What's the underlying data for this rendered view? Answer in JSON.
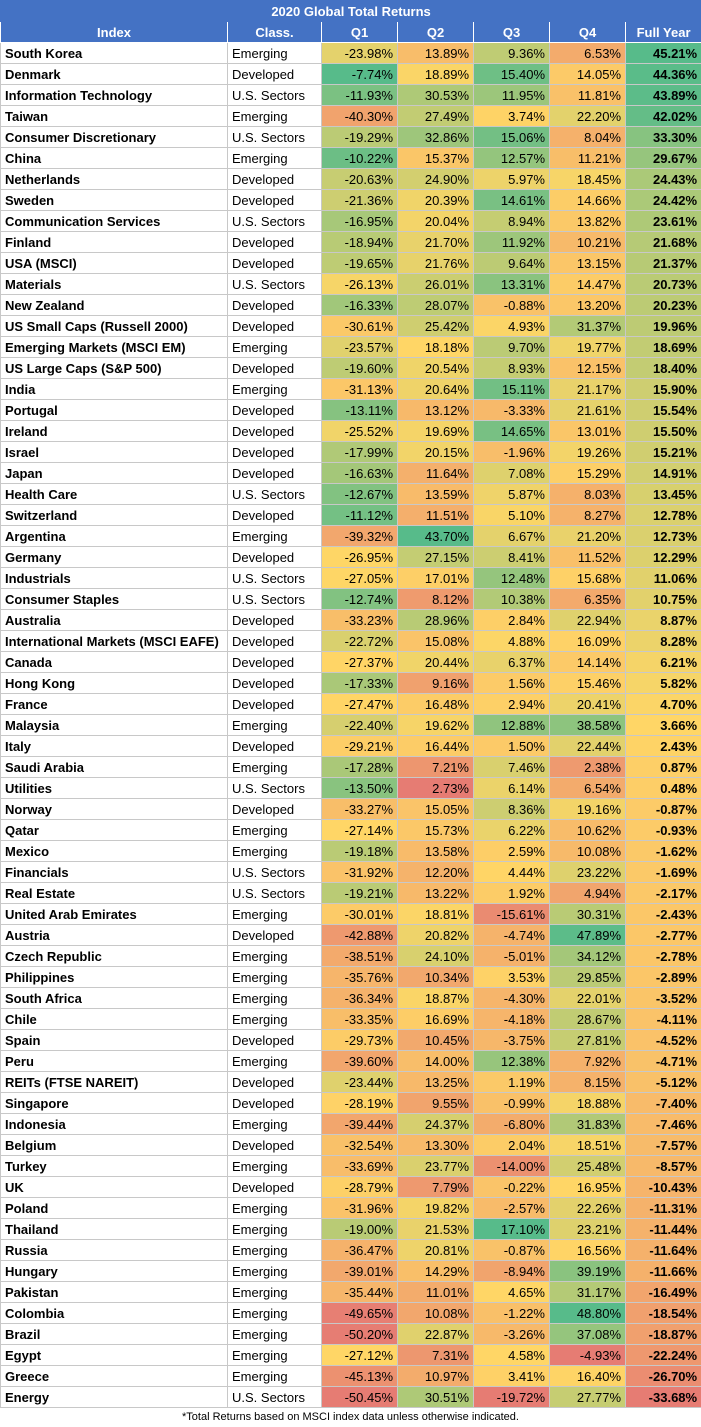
{
  "chart_data": {
    "type": "table",
    "title": "2020 Global Total Returns",
    "columns": [
      "Index",
      "Class.",
      "Q1",
      "Q2",
      "Q3",
      "Q4",
      "Full Year"
    ],
    "rows": [
      [
        "South Korea",
        "Emerging",
        "-23.98%",
        "13.89%",
        "9.36%",
        "6.53%",
        "45.21%"
      ],
      [
        "Denmark",
        "Developed",
        "-7.74%",
        "18.89%",
        "15.40%",
        "14.05%",
        "44.36%"
      ],
      [
        "Information Technology",
        "U.S. Sectors",
        "-11.93%",
        "30.53%",
        "11.95%",
        "11.81%",
        "43.89%"
      ],
      [
        "Taiwan",
        "Emerging",
        "-40.30%",
        "27.49%",
        "3.74%",
        "22.20%",
        "42.02%"
      ],
      [
        "Consumer Discretionary",
        "U.S. Sectors",
        "-19.29%",
        "32.86%",
        "15.06%",
        "8.04%",
        "33.30%"
      ],
      [
        "China",
        "Emerging",
        "-10.22%",
        "15.37%",
        "12.57%",
        "11.21%",
        "29.67%"
      ],
      [
        "Netherlands",
        "Developed",
        "-20.63%",
        "24.90%",
        "5.97%",
        "18.45%",
        "24.43%"
      ],
      [
        "Sweden",
        "Developed",
        "-21.36%",
        "20.39%",
        "14.61%",
        "14.66%",
        "24.42%"
      ],
      [
        "Communication Services",
        "U.S. Sectors",
        "-16.95%",
        "20.04%",
        "8.94%",
        "13.82%",
        "23.61%"
      ],
      [
        "Finland",
        "Developed",
        "-18.94%",
        "21.70%",
        "11.92%",
        "10.21%",
        "21.68%"
      ],
      [
        "USA (MSCI)",
        "Developed",
        "-19.65%",
        "21.76%",
        "9.64%",
        "13.15%",
        "21.37%"
      ],
      [
        "Materials",
        "U.S. Sectors",
        "-26.13%",
        "26.01%",
        "13.31%",
        "14.47%",
        "20.73%"
      ],
      [
        "New Zealand",
        "Developed",
        "-16.33%",
        "28.07%",
        "-0.88%",
        "13.20%",
        "20.23%"
      ],
      [
        "US Small Caps (Russell 2000)",
        "Developed",
        "-30.61%",
        "25.42%",
        "4.93%",
        "31.37%",
        "19.96%"
      ],
      [
        "Emerging Markets (MSCI EM)",
        "Emerging",
        "-23.57%",
        "18.18%",
        "9.70%",
        "19.77%",
        "18.69%"
      ],
      [
        "US Large Caps (S&P 500)",
        "Developed",
        "-19.60%",
        "20.54%",
        "8.93%",
        "12.15%",
        "18.40%"
      ],
      [
        "India",
        "Emerging",
        "-31.13%",
        "20.64%",
        "15.11%",
        "21.17%",
        "15.90%"
      ],
      [
        "Portugal",
        "Developed",
        "-13.11%",
        "13.12%",
        "-3.33%",
        "21.61%",
        "15.54%"
      ],
      [
        "Ireland",
        "Developed",
        "-25.52%",
        "19.69%",
        "14.65%",
        "13.01%",
        "15.50%"
      ],
      [
        "Israel",
        "Developed",
        "-17.99%",
        "20.15%",
        "-1.96%",
        "19.26%",
        "15.21%"
      ],
      [
        "Japan",
        "Developed",
        "-16.63%",
        "11.64%",
        "7.08%",
        "15.29%",
        "14.91%"
      ],
      [
        "Health Care",
        "U.S. Sectors",
        "-12.67%",
        "13.59%",
        "5.87%",
        "8.03%",
        "13.45%"
      ],
      [
        "Switzerland",
        "Developed",
        "-11.12%",
        "11.51%",
        "5.10%",
        "8.27%",
        "12.78%"
      ],
      [
        "Argentina",
        "Emerging",
        "-39.32%",
        "43.70%",
        "6.67%",
        "21.20%",
        "12.73%"
      ],
      [
        "Germany",
        "Developed",
        "-26.95%",
        "27.15%",
        "8.41%",
        "11.52%",
        "12.29%"
      ],
      [
        "Industrials",
        "U.S. Sectors",
        "-27.05%",
        "17.01%",
        "12.48%",
        "15.68%",
        "11.06%"
      ],
      [
        "Consumer Staples",
        "U.S. Sectors",
        "-12.74%",
        "8.12%",
        "10.38%",
        "6.35%",
        "10.75%"
      ],
      [
        "Australia",
        "Developed",
        "-33.23%",
        "28.96%",
        "2.84%",
        "22.94%",
        "8.87%"
      ],
      [
        "International Markets (MSCI EAFE)",
        "Developed",
        "-22.72%",
        "15.08%",
        "4.88%",
        "16.09%",
        "8.28%"
      ],
      [
        "Canada",
        "Developed",
        "-27.37%",
        "20.44%",
        "6.37%",
        "14.14%",
        "6.21%"
      ],
      [
        "Hong Kong",
        "Developed",
        "-17.33%",
        "9.16%",
        "1.56%",
        "15.46%",
        "5.82%"
      ],
      [
        "France",
        "Developed",
        "-27.47%",
        "16.48%",
        "2.94%",
        "20.41%",
        "4.70%"
      ],
      [
        "Malaysia",
        "Emerging",
        "-22.40%",
        "19.62%",
        "12.88%",
        "38.58%",
        "3.66%"
      ],
      [
        "Italy",
        "Developed",
        "-29.21%",
        "16.44%",
        "1.50%",
        "22.44%",
        "2.43%"
      ],
      [
        "Saudi Arabia",
        "Emerging",
        "-17.28%",
        "7.21%",
        "7.46%",
        "2.38%",
        "0.87%"
      ],
      [
        "Utilities",
        "U.S. Sectors",
        "-13.50%",
        "2.73%",
        "6.14%",
        "6.54%",
        "0.48%"
      ],
      [
        "Norway",
        "Developed",
        "-33.27%",
        "15.05%",
        "8.36%",
        "19.16%",
        "-0.87%"
      ],
      [
        "Qatar",
        "Emerging",
        "-27.14%",
        "15.73%",
        "6.22%",
        "10.62%",
        "-0.93%"
      ],
      [
        "Mexico",
        "Emerging",
        "-19.18%",
        "13.58%",
        "2.59%",
        "10.08%",
        "-1.62%"
      ],
      [
        "Financials",
        "U.S. Sectors",
        "-31.92%",
        "12.20%",
        "4.44%",
        "23.22%",
        "-1.69%"
      ],
      [
        "Real Estate",
        "U.S. Sectors",
        "-19.21%",
        "13.22%",
        "1.92%",
        "4.94%",
        "-2.17%"
      ],
      [
        "United Arab Emirates",
        "Emerging",
        "-30.01%",
        "18.81%",
        "-15.61%",
        "30.31%",
        "-2.43%"
      ],
      [
        "Austria",
        "Developed",
        "-42.88%",
        "20.82%",
        "-4.74%",
        "47.89%",
        "-2.77%"
      ],
      [
        "Czech Republic",
        "Emerging",
        "-38.51%",
        "24.10%",
        "-5.01%",
        "34.12%",
        "-2.78%"
      ],
      [
        "Philippines",
        "Emerging",
        "-35.76%",
        "10.34%",
        "3.53%",
        "29.85%",
        "-2.89%"
      ],
      [
        "South Africa",
        "Emerging",
        "-36.34%",
        "18.87%",
        "-4.30%",
        "22.01%",
        "-3.52%"
      ],
      [
        "Chile",
        "Emerging",
        "-33.35%",
        "16.69%",
        "-4.18%",
        "28.67%",
        "-4.11%"
      ],
      [
        "Spain",
        "Developed",
        "-29.73%",
        "10.45%",
        "-3.75%",
        "27.81%",
        "-4.52%"
      ],
      [
        "Peru",
        "Emerging",
        "-39.60%",
        "14.00%",
        "12.38%",
        "7.92%",
        "-4.71%"
      ],
      [
        "REITs (FTSE NAREIT)",
        "Developed",
        "-23.44%",
        "13.25%",
        "1.19%",
        "8.15%",
        "-5.12%"
      ],
      [
        "Singapore",
        "Developed",
        "-28.19%",
        "9.55%",
        "-0.99%",
        "18.88%",
        "-7.40%"
      ],
      [
        "Indonesia",
        "Emerging",
        "-39.44%",
        "24.37%",
        "-6.80%",
        "31.83%",
        "-7.46%"
      ],
      [
        "Belgium",
        "Developed",
        "-32.54%",
        "13.30%",
        "2.04%",
        "18.51%",
        "-7.57%"
      ],
      [
        "Turkey",
        "Emerging",
        "-33.69%",
        "23.77%",
        "-14.00%",
        "25.48%",
        "-8.57%"
      ],
      [
        "UK",
        "Developed",
        "-28.79%",
        "7.79%",
        "-0.22%",
        "16.95%",
        "-10.43%"
      ],
      [
        "Poland",
        "Emerging",
        "-31.96%",
        "19.82%",
        "-2.57%",
        "22.26%",
        "-11.31%"
      ],
      [
        "Thailand",
        "Emerging",
        "-19.00%",
        "21.53%",
        "17.10%",
        "23.21%",
        "-11.44%"
      ],
      [
        "Russia",
        "Emerging",
        "-36.47%",
        "20.81%",
        "-0.87%",
        "16.56%",
        "-11.64%"
      ],
      [
        "Hungary",
        "Emerging",
        "-39.01%",
        "14.29%",
        "-8.94%",
        "39.19%",
        "-11.66%"
      ],
      [
        "Pakistan",
        "Emerging",
        "-35.44%",
        "11.01%",
        "4.65%",
        "31.17%",
        "-16.49%"
      ],
      [
        "Colombia",
        "Emerging",
        "-49.65%",
        "10.08%",
        "-1.22%",
        "48.80%",
        "-18.54%"
      ],
      [
        "Brazil",
        "Emerging",
        "-50.20%",
        "22.87%",
        "-3.26%",
        "37.08%",
        "-18.87%"
      ],
      [
        "Egypt",
        "Emerging",
        "-27.12%",
        "7.31%",
        "4.58%",
        "-4.93%",
        "-22.24%"
      ],
      [
        "Greece",
        "Emerging",
        "-45.13%",
        "10.97%",
        "3.41%",
        "16.40%",
        "-26.70%"
      ],
      [
        "Energy",
        "U.S. Sectors",
        "-50.45%",
        "30.51%",
        "-19.72%",
        "27.77%",
        "-33.68%"
      ]
    ],
    "footnote": "*Total Returns based on MSCI index data unless otherwise indicated."
  },
  "colors": {
    "header_bg": "#4472c4",
    "header_text": "#ffffff",
    "scale_low": "#e67c73",
    "scale_mid": "#ffd666",
    "scale_high": "#57bb8a"
  }
}
